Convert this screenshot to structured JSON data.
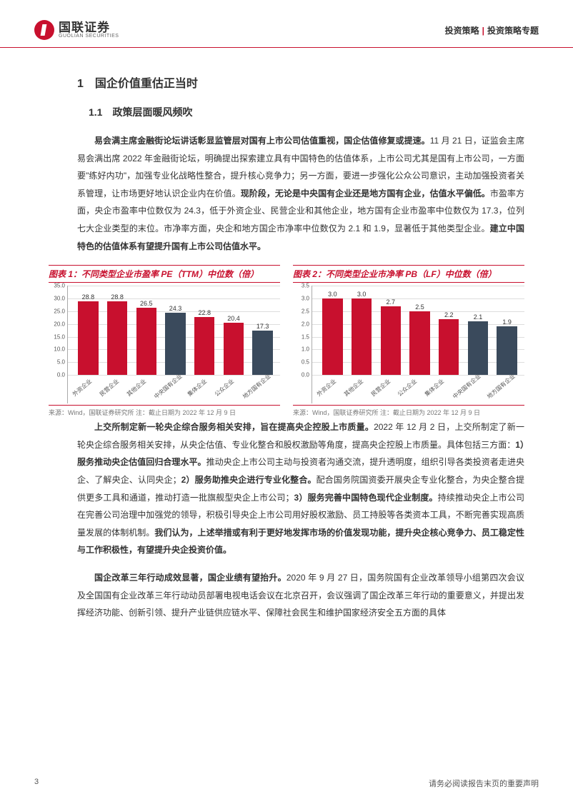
{
  "header": {
    "logo_cn": "国联证券",
    "logo_en": "GUOLIAN SECURITIES",
    "right_a": "投资策略",
    "right_b": "投资策略专题"
  },
  "section": {
    "num_title": "1　国企价值重估正当时",
    "sub_title": "1.1　政策层面暖风频吹"
  },
  "para1_lead": "易会满主席金融街论坛讲话彰显监管层对国有上市公司估值重视，国企估值修复或提速。",
  "para1_body_a": "11 月 21 日，证监会主席易会满出席 2022 年金融街论坛，明确提出探索建立具有中国特色的估值体系，上市公司尤其是国有上市公司，一方面要\"练好内功\"，加强专业化战略性整合，提升核心竞争力；另一方面，要进一步强化公众公司意识，主动加强投资者关系管理，让市场更好地认识企业内在价值。",
  "para1_bold_b": "现阶段，无论是中央国有企业还是地方国有企业，估值水平偏低。",
  "para1_body_b": "市盈率方面，央企市盈率中位数仅为 24.3，低于外资企业、民营企业和其他企业，地方国有企业市盈率中位数仅为 17.3，位列七大企业类型的末位。市净率方面，央企和地方国企市净率中位数仅为 2.1 和 1.9，显著低于其他类型企业。",
  "para1_bold_c": "建立中国特色的估值体系有望提升国有上市公司估值水平。",
  "chart1": {
    "title": "图表 1：不同类型企业市盈率 PE（TTM）中位数（倍）",
    "type": "bar",
    "ylim": [
      0,
      35
    ],
    "ytick_step": 5,
    "y_fmt": ".0",
    "categories": [
      "外资企业",
      "民营企业",
      "其他企业",
      "中央国有企业",
      "集体企业",
      "公众企业",
      "地方国有企业"
    ],
    "values": [
      28.8,
      28.8,
      26.5,
      24.3,
      22.8,
      20.4,
      17.3
    ],
    "colors": [
      "#c8102e",
      "#c8102e",
      "#c8102e",
      "#3a4a5c",
      "#c8102e",
      "#c8102e",
      "#3a4a5c"
    ],
    "source": "来源：Wind，国联证券研究所  注：截止日期为 2022 年 12 月 9 日"
  },
  "chart2": {
    "title": "图表 2：不同类型企业市净率 PB（LF）中位数（倍）",
    "type": "bar",
    "ylim": [
      0,
      3.5
    ],
    "ytick_step": 0.5,
    "y_fmt": ".1",
    "categories": [
      "外资企业",
      "其他企业",
      "民营企业",
      "公众企业",
      "集体企业",
      "中央国有企业",
      "地方国有企业"
    ],
    "values": [
      3.0,
      3.0,
      2.7,
      2.5,
      2.2,
      2.1,
      1.9
    ],
    "colors": [
      "#c8102e",
      "#c8102e",
      "#c8102e",
      "#c8102e",
      "#c8102e",
      "#3a4a5c",
      "#3a4a5c"
    ],
    "source": "来源：Wind，国联证券研究所  注：截止日期为 2022 年 12 月 9 日"
  },
  "para2_lead": "上交所制定新一轮央企综合服务相关安排，旨在提高央企控股上市质量。",
  "para2_body": "2022 年 12 月 2 日，上交所制定了新一轮央企综合服务相关安排，从央企估值、专业化整合和股权激励等角度，提高央企控股上市质量。具体包括三方面：",
  "para2_b1": "1）服务推动央企估值回归合理水平。",
  "para2_t1": "推动央企上市公司主动与投资者沟通交流，提升透明度，组织引导各类投资者走进央企、了解央企、认同央企；",
  "para2_b2": "2）服务助推央企进行专业化整合。",
  "para2_t2": "配合国务院国资委开展央企专业化整合，为央企整合提供更多工具和通道，推动打造一批旗舰型央企上市公司；",
  "para2_b3": "3）服务完善中国特色现代企业制度。",
  "para2_t3": "持续推动央企上市公司在完善公司治理中加强党的领导，积极引导央企上市公司用好股权激励、员工持股等各类资本工具，不断完善实现高质量发展的体制机制。",
  "para2_tail_bold": "我们认为，上述举措或有利于更好地发挥市场的价值发现功能，提升央企核心竞争力、员工稳定性与工作积极性，有望提升央企投资价值。",
  "para3_lead": "国企改革三年行动成效显著，国企业绩有望抬升。",
  "para3_body": "2020 年 9 月 27 日，国务院国有企业改革领导小组第四次会议及全国国有企业改革三年行动动员部署电视电话会议在北京召开，会议强调了国企改革三年行动的重要意义，并提出发挥经济功能、创新引领、提升产业链供应链水平、保障社会民生和维护国家经济安全五方面的具体",
  "footer": {
    "page": "3",
    "disclaimer": "请务必阅读报告末页的重要声明"
  }
}
